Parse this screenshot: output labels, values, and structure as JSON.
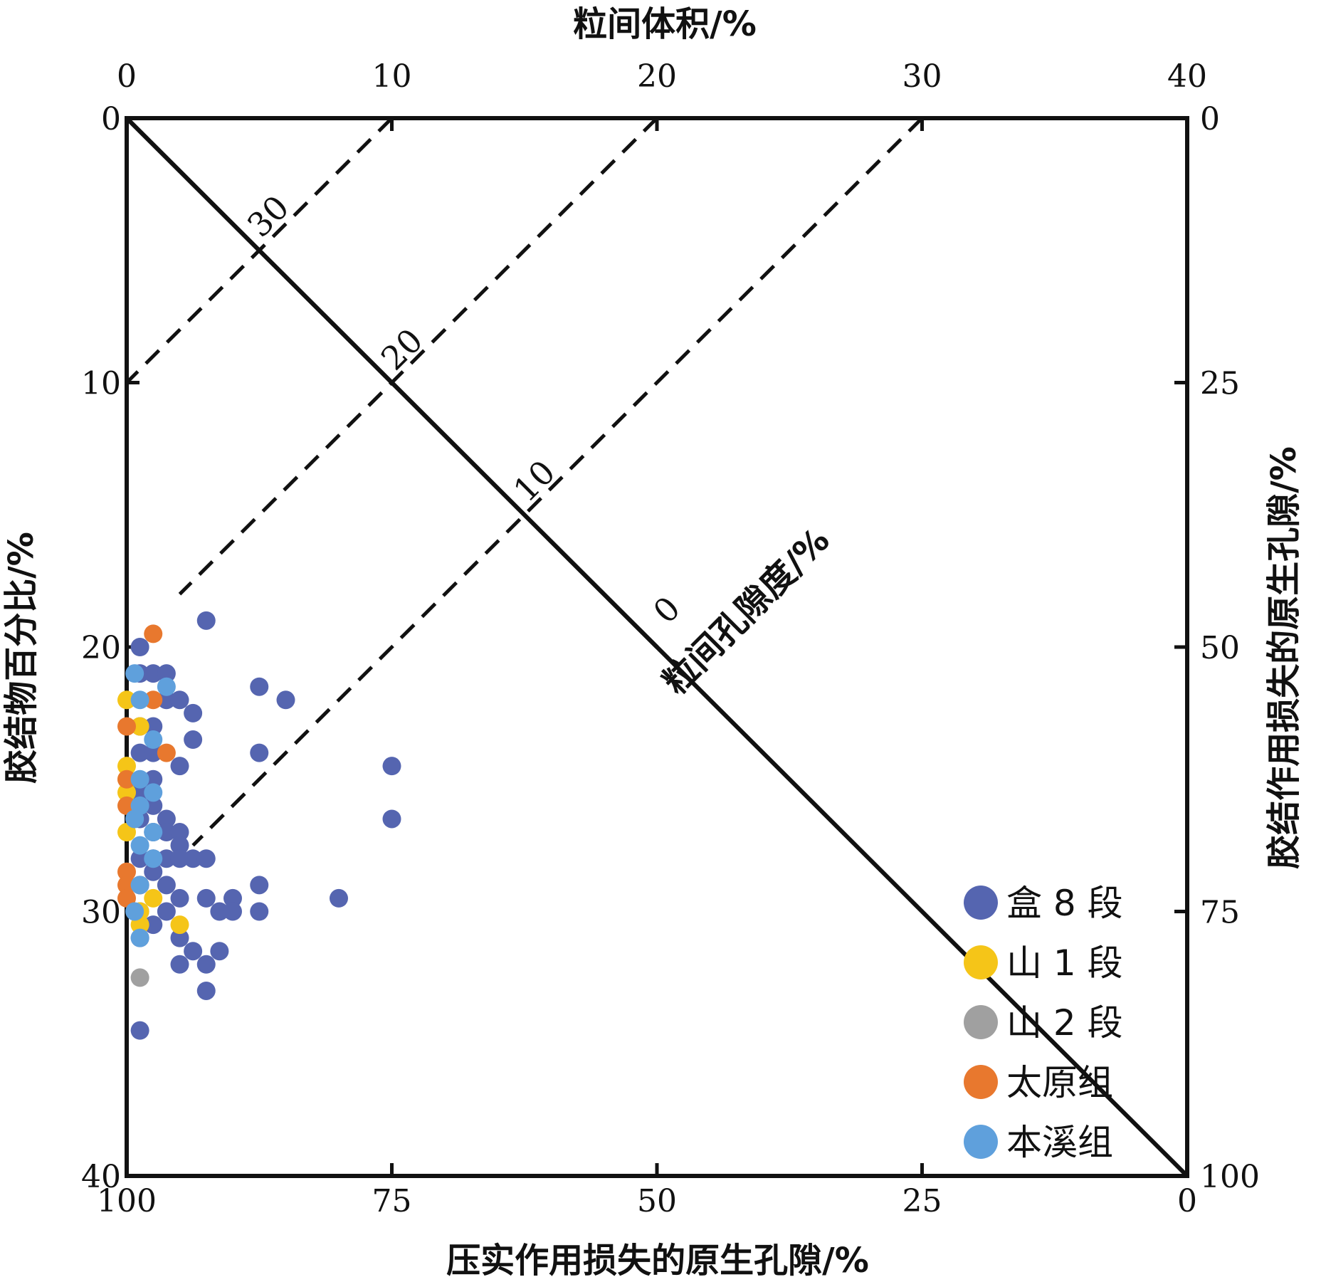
{
  "chart_data": {
    "type": "scatter",
    "title": "",
    "axes": {
      "top": {
        "label": "粒间体积/%",
        "range": [
          0,
          40
        ],
        "ticks": [
          "0",
          "10",
          "20",
          "30",
          "40"
        ]
      },
      "left": {
        "label": "胶结物百分比/%",
        "range": [
          0,
          40
        ],
        "ticks": [
          "0",
          "10",
          "20",
          "30",
          "40"
        ]
      },
      "right": {
        "label": "胶结作用损失的原生孔隙/%",
        "range": [
          0,
          100
        ],
        "ticks": [
          "0",
          "25",
          "50",
          "75",
          "100"
        ]
      },
      "bottom": {
        "label": "压实作用损失的原生孔隙/%",
        "range": [
          100,
          0
        ],
        "ticks": [
          "100",
          "75",
          "50",
          "25",
          "0"
        ]
      }
    },
    "diagonal_axis": {
      "label": "粒间孔隙度/%",
      "ticks": [
        "30",
        "20",
        "10",
        "0"
      ]
    },
    "reference_lines": [
      {
        "style": "solid",
        "from": [
          0,
          0
        ],
        "to": [
          40,
          40
        ]
      },
      {
        "style": "solid",
        "from": [
          0,
          0
        ],
        "to": [
          20,
          20
        ]
      },
      {
        "style": "dashed",
        "from": [
          10,
          0
        ],
        "to": [
          0,
          10
        ],
        "porosity": 30
      },
      {
        "style": "dashed",
        "from": [
          20,
          0
        ],
        "to": [
          2,
          18
        ],
        "porosity": 20
      },
      {
        "style": "dashed",
        "from": [
          30,
          0
        ],
        "to": [
          2.5,
          27.5
        ],
        "porosity": 10
      }
    ],
    "legend": {
      "position": "bottom-right"
    },
    "series": [
      {
        "name": "盒 8 段",
        "color": "#5565b0",
        "points": [
          [
            3,
            19
          ],
          [
            0.5,
            20
          ],
          [
            0.5,
            21
          ],
          [
            1,
            21
          ],
          [
            1.5,
            21
          ],
          [
            5,
            21.5
          ],
          [
            6,
            22
          ],
          [
            1.5,
            22
          ],
          [
            2,
            22
          ],
          [
            2.5,
            22.5
          ],
          [
            0.5,
            23
          ],
          [
            1,
            23
          ],
          [
            2.5,
            23.5
          ],
          [
            0.5,
            24
          ],
          [
            1,
            24
          ],
          [
            5,
            24
          ],
          [
            2,
            24.5
          ],
          [
            10,
            24.5
          ],
          [
            1,
            25
          ],
          [
            0.5,
            25.5
          ],
          [
            1,
            26
          ],
          [
            0.5,
            26.5
          ],
          [
            1.5,
            26.5
          ],
          [
            10,
            26.5
          ],
          [
            1,
            27
          ],
          [
            1.5,
            27
          ],
          [
            2,
            27
          ],
          [
            2,
            27.5
          ],
          [
            0.5,
            28
          ],
          [
            1,
            28
          ],
          [
            1.5,
            28
          ],
          [
            2,
            28
          ],
          [
            2.5,
            28
          ],
          [
            3,
            28
          ],
          [
            1,
            28.5
          ],
          [
            0.5,
            29
          ],
          [
            1.5,
            29
          ],
          [
            5,
            29
          ],
          [
            2,
            29.5
          ],
          [
            3,
            29.5
          ],
          [
            4,
            29.5
          ],
          [
            8,
            29.5
          ],
          [
            0.5,
            30
          ],
          [
            1.5,
            30
          ],
          [
            3.5,
            30
          ],
          [
            4,
            30
          ],
          [
            5,
            30
          ],
          [
            1,
            30.5
          ],
          [
            0.5,
            31
          ],
          [
            2,
            31
          ],
          [
            2.5,
            31.5
          ],
          [
            3.5,
            31.5
          ],
          [
            2,
            32
          ],
          [
            3,
            32
          ],
          [
            3,
            33
          ],
          [
            0.5,
            34.5
          ]
        ]
      },
      {
        "name": "山 1 段",
        "color": "#f5c518",
        "points": [
          [
            0,
            22
          ],
          [
            0.5,
            23
          ],
          [
            0,
            24.5
          ],
          [
            0,
            25
          ],
          [
            0,
            25.5
          ],
          [
            0,
            27
          ],
          [
            1,
            29.5
          ],
          [
            0.5,
            30
          ],
          [
            0.5,
            30.5
          ],
          [
            2,
            30.5
          ]
        ]
      },
      {
        "name": "山 2 段",
        "color": "#a0a0a0",
        "points": [
          [
            0.5,
            32.5
          ]
        ]
      },
      {
        "name": "太原组",
        "color": "#e8782e",
        "points": [
          [
            1,
            19.5
          ],
          [
            1,
            22
          ],
          [
            0,
            23
          ],
          [
            1.5,
            24
          ],
          [
            0,
            25
          ],
          [
            0,
            26
          ],
          [
            0,
            28.5
          ],
          [
            0,
            29
          ],
          [
            0.5,
            29
          ],
          [
            0,
            29.5
          ]
        ]
      },
      {
        "name": "本溪组",
        "color": "#5fa0dc",
        "points": [
          [
            0.3,
            21
          ],
          [
            1.5,
            21.5
          ],
          [
            0.5,
            22
          ],
          [
            1,
            23.5
          ],
          [
            0.5,
            25
          ],
          [
            1,
            25.5
          ],
          [
            0.5,
            26
          ],
          [
            0.3,
            26.5
          ],
          [
            1,
            27
          ],
          [
            0.5,
            27.5
          ],
          [
            1,
            28
          ],
          [
            0.5,
            29
          ],
          [
            0.3,
            30
          ],
          [
            0.5,
            31
          ]
        ]
      }
    ]
  }
}
